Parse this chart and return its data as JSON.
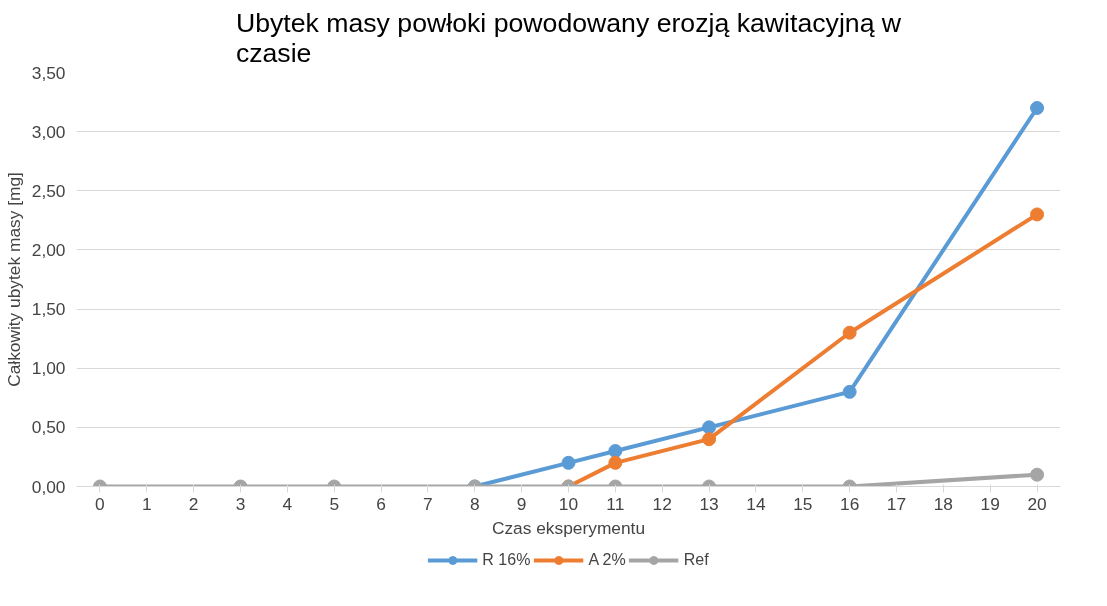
{
  "chart_data": {
    "type": "line",
    "title": "Ubytek masy powłoki powodowany erozją kawitacyjną w czasie",
    "xlabel": "Czas eksperymentu",
    "ylabel": "Całkowity ubytek masy [mg]",
    "x": [
      0,
      3,
      5,
      8,
      10,
      11,
      13,
      16,
      20
    ],
    "series": [
      {
        "name": "R 16%",
        "color": "#5b9bd5",
        "values": [
          null,
          null,
          null,
          0,
          0.2,
          0.3,
          0.5,
          0.8,
          3.2
        ]
      },
      {
        "name": "A 2%",
        "color": "#ed7d31",
        "values": [
          null,
          null,
          null,
          null,
          0,
          0.2,
          0.4,
          1.3,
          2.3
        ]
      },
      {
        "name": "Ref",
        "color": "#a5a5a5",
        "values": [
          0,
          0,
          0,
          0,
          0,
          0,
          0,
          0,
          0.1
        ]
      }
    ],
    "xlim": [
      -0.5,
      20.5
    ],
    "xticks": [
      0,
      1,
      2,
      3,
      4,
      5,
      6,
      7,
      8,
      9,
      10,
      11,
      12,
      13,
      14,
      15,
      16,
      17,
      18,
      19,
      20
    ],
    "ylim": [
      0,
      3.5
    ],
    "yticks": [
      {
        "value": 0,
        "label": "0,00"
      },
      {
        "value": 0.5,
        "label": "0,50"
      },
      {
        "value": 1,
        "label": "1,00"
      },
      {
        "value": 1.5,
        "label": "1,50"
      },
      {
        "value": 2,
        "label": "2,00"
      },
      {
        "value": 2.5,
        "label": "2,50"
      },
      {
        "value": 3,
        "label": "3,00"
      },
      {
        "value": 3.5,
        "label": "3,50"
      }
    ],
    "grid": "y",
    "legend": "bottom",
    "marker": "circle",
    "line_style": "solid"
  }
}
